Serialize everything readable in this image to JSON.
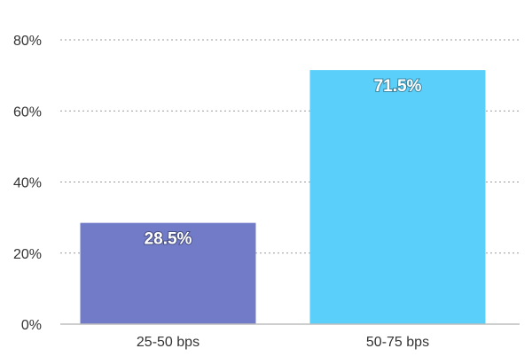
{
  "chart_data": {
    "type": "bar",
    "categories": [
      "25-50 bps",
      "50-75 bps"
    ],
    "values": [
      28.5,
      71.5
    ],
    "data_labels": [
      "28.5%",
      "71.5%"
    ],
    "colors": [
      "#717bc8",
      "#59cffa"
    ],
    "title": "",
    "xlabel": "",
    "ylabel": "",
    "ylim": [
      0,
      80
    ],
    "y_ticks": [
      0,
      20,
      40,
      60,
      80
    ],
    "y_tick_labels": [
      "0%",
      "20%",
      "40%",
      "60%",
      "80%"
    ],
    "grid": true,
    "legend": "none"
  }
}
